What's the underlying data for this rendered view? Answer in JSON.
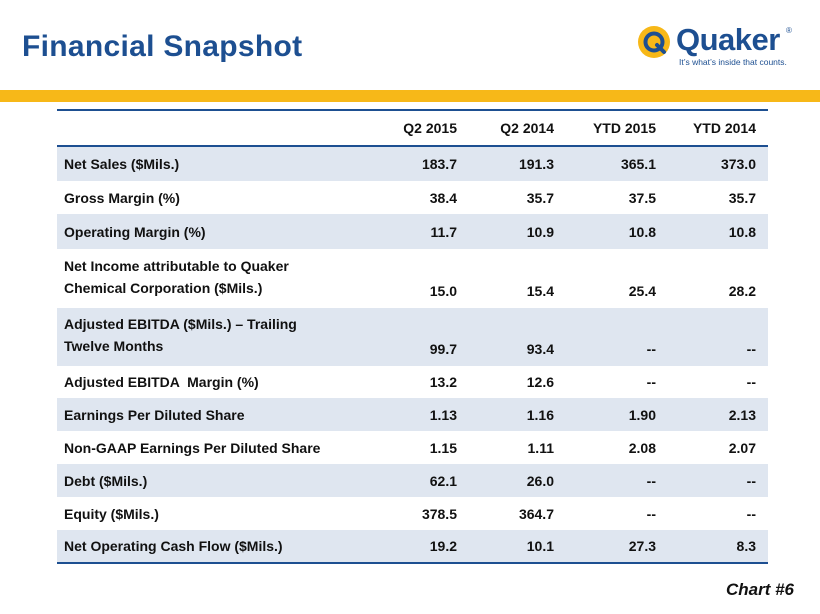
{
  "title": "Financial Snapshot",
  "logo": {
    "wordmark": "Quaker",
    "registered": "®",
    "tagline": "It’s what’s inside that counts."
  },
  "colors": {
    "brand_blue": "#1d4f91",
    "accent_gold": "#f7b818",
    "row_shade": "#dfe6f0"
  },
  "table": {
    "columns": [
      "Q2 2015",
      "Q2 2014",
      "YTD 2015",
      "YTD 2014"
    ],
    "rows": [
      {
        "label": [
          "Net Sales ($Mils.)"
        ],
        "values": [
          "183.7",
          "191.3",
          "365.1",
          "373.0"
        ]
      },
      {
        "label": [
          "Gross Margin (%)"
        ],
        "values": [
          "38.4",
          "35.7",
          "37.5",
          "35.7"
        ]
      },
      {
        "label": [
          "Operating Margin (%)"
        ],
        "values": [
          "11.7",
          "10.9",
          "10.8",
          "10.8"
        ]
      },
      {
        "label": [
          "Net Income attributable to Quaker",
          "Chemical Corporation ($Mils.)"
        ],
        "values": [
          "15.0",
          "15.4",
          "25.4",
          "28.2"
        ]
      },
      {
        "label": [
          "Adjusted EBITDA ($Mils.) – Trailing",
          "Twelve Months"
        ],
        "values": [
          "99.7",
          "93.4",
          "--",
          "--"
        ]
      },
      {
        "label": [
          "Adjusted EBITDA  Margin (%)"
        ],
        "values": [
          "13.2",
          "12.6",
          "--",
          "--"
        ]
      },
      {
        "label": [
          "Earnings Per Diluted Share"
        ],
        "values": [
          "1.13",
          "1.16",
          "1.90",
          "2.13"
        ]
      },
      {
        "label": [
          "Non-GAAP Earnings Per Diluted Share"
        ],
        "values": [
          "1.15",
          "1.11",
          "2.08",
          "2.07"
        ]
      },
      {
        "label": [
          "Debt ($Mils.)"
        ],
        "values": [
          "62.1",
          "26.0",
          "--",
          "--"
        ]
      },
      {
        "label": [
          "Equity ($Mils.)"
        ],
        "values": [
          "378.5",
          "364.7",
          "--",
          "--"
        ]
      },
      {
        "label": [
          "Net Operating Cash Flow ($Mils.)"
        ],
        "values": [
          "19.2",
          "10.1",
          "27.3",
          "8.3"
        ]
      }
    ]
  },
  "footer": {
    "chart_number": "Chart #6"
  }
}
